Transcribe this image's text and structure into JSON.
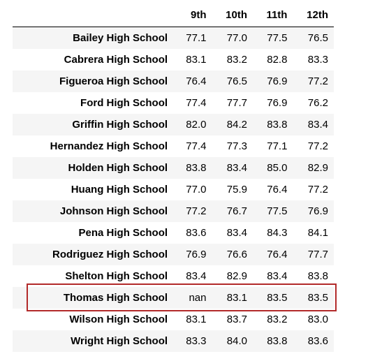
{
  "table": {
    "columns": [
      "9th",
      "10th",
      "11th",
      "12th"
    ],
    "rows": [
      {
        "school": "Bailey High School",
        "values": [
          "77.1",
          "77.0",
          "77.5",
          "76.5"
        ]
      },
      {
        "school": "Cabrera High School",
        "values": [
          "83.1",
          "83.2",
          "82.8",
          "83.3"
        ]
      },
      {
        "school": "Figueroa High School",
        "values": [
          "76.4",
          "76.5",
          "76.9",
          "77.2"
        ]
      },
      {
        "school": "Ford High School",
        "values": [
          "77.4",
          "77.7",
          "76.9",
          "76.2"
        ]
      },
      {
        "school": "Griffin High School",
        "values": [
          "82.0",
          "84.2",
          "83.8",
          "83.4"
        ]
      },
      {
        "school": "Hernandez High School",
        "values": [
          "77.4",
          "77.3",
          "77.1",
          "77.2"
        ]
      },
      {
        "school": "Holden High School",
        "values": [
          "83.8",
          "83.4",
          "85.0",
          "82.9"
        ]
      },
      {
        "school": "Huang High School",
        "values": [
          "77.0",
          "75.9",
          "76.4",
          "77.2"
        ]
      },
      {
        "school": "Johnson High School",
        "values": [
          "77.2",
          "76.7",
          "77.5",
          "76.9"
        ]
      },
      {
        "school": "Pena High School",
        "values": [
          "83.6",
          "83.4",
          "84.3",
          "84.1"
        ]
      },
      {
        "school": "Rodriguez High School",
        "values": [
          "76.9",
          "76.6",
          "76.4",
          "77.7"
        ]
      },
      {
        "school": "Shelton High School",
        "values": [
          "83.4",
          "82.9",
          "83.4",
          "83.8"
        ]
      },
      {
        "school": "Thomas High School",
        "values": [
          "nan",
          "83.1",
          "83.5",
          "83.5"
        ]
      },
      {
        "school": "Wilson High School",
        "values": [
          "83.1",
          "83.7",
          "83.2",
          "83.0"
        ]
      },
      {
        "school": "Wright High School",
        "values": [
          "83.3",
          "84.0",
          "83.8",
          "83.6"
        ]
      }
    ]
  },
  "highlight": {
    "row_school": "Thomas High School",
    "color": "#b22a2a"
  }
}
